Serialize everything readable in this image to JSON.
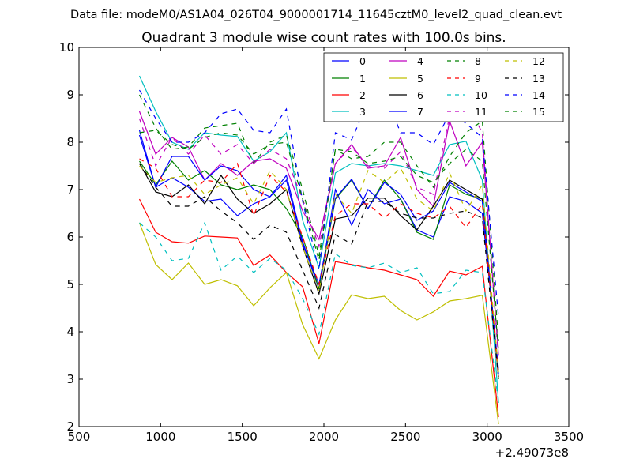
{
  "figure": {
    "suptitle": "Data file: modeM0/AS1A04_026T04_9000001714_11645cztM0_level2_quad_clean.evt"
  },
  "chart_data": {
    "type": "line",
    "title": "Quadrant 3 module wise count rates with 100.0s bins.",
    "xlabel": "",
    "ylabel": "",
    "x_offset_label": "+2.49073e8",
    "xlim": [
      500,
      3500
    ],
    "ylim": [
      2,
      10
    ],
    "xticks": [
      500,
      1000,
      1500,
      2000,
      2500,
      3000,
      3500
    ],
    "yticks": [
      2,
      3,
      4,
      5,
      6,
      7,
      8,
      9,
      10
    ],
    "legend_position": "upper-right",
    "legend_columns": 4,
    "x": [
      870,
      970,
      1070,
      1170,
      1270,
      1370,
      1470,
      1570,
      1670,
      1770,
      1870,
      1970,
      2070,
      2170,
      2270,
      2370,
      2470,
      2570,
      2670,
      2770,
      2870,
      2970,
      3070
    ],
    "series": [
      {
        "name": "0",
        "color": "#0000ff",
        "dash": "solid",
        "values": [
          8.15,
          7.05,
          7.25,
          7.05,
          6.75,
          6.8,
          6.45,
          6.7,
          6.85,
          7.3,
          5.9,
          4.9,
          7.0,
          6.25,
          7.0,
          6.7,
          6.8,
          6.15,
          6.0,
          6.85,
          6.75,
          6.5,
          3.2
        ]
      },
      {
        "name": "1",
        "color": "#008000",
        "dash": "solid",
        "values": [
          7.6,
          7.1,
          7.6,
          7.2,
          7.4,
          7.1,
          7.0,
          7.1,
          7.0,
          6.6,
          6.0,
          4.9,
          6.8,
          7.2,
          6.6,
          7.2,
          6.8,
          6.1,
          5.95,
          7.1,
          6.9,
          6.8,
          3.0
        ]
      },
      {
        "name": "2",
        "color": "#ff0000",
        "dash": "solid",
        "values": [
          6.8,
          6.1,
          5.9,
          5.87,
          6.02,
          6.0,
          5.98,
          5.4,
          5.62,
          5.25,
          4.95,
          3.75,
          5.48,
          5.42,
          5.35,
          5.3,
          5.2,
          5.1,
          4.75,
          5.28,
          5.2,
          5.38,
          2.2
        ]
      },
      {
        "name": "3",
        "color": "#00bfbf",
        "dash": "solid",
        "values": [
          9.4,
          8.65,
          8.0,
          7.85,
          8.2,
          8.15,
          8.12,
          7.6,
          7.8,
          8.2,
          6.35,
          5.35,
          7.35,
          7.55,
          7.5,
          7.55,
          7.5,
          7.4,
          7.3,
          7.95,
          8.02,
          7.2,
          2.5
        ]
      },
      {
        "name": "4",
        "color": "#bf00bf",
        "dash": "solid",
        "values": [
          8.65,
          7.75,
          8.1,
          7.9,
          7.2,
          7.55,
          7.3,
          7.6,
          7.65,
          7.45,
          6.55,
          5.95,
          7.55,
          7.95,
          7.45,
          7.5,
          8.1,
          7.0,
          6.65,
          8.45,
          7.5,
          8.0,
          3.5
        ]
      },
      {
        "name": "5",
        "color": "#bfbf00",
        "dash": "solid",
        "values": [
          6.3,
          5.42,
          5.1,
          5.45,
          5.0,
          5.1,
          4.97,
          4.55,
          4.93,
          5.25,
          4.15,
          3.43,
          4.25,
          4.78,
          4.7,
          4.75,
          4.45,
          4.25,
          4.42,
          4.65,
          4.7,
          4.77,
          2.05
        ]
      },
      {
        "name": "6",
        "color": "#000000",
        "dash": "solid",
        "values": [
          7.55,
          6.95,
          6.85,
          7.1,
          6.7,
          7.3,
          6.8,
          6.5,
          6.7,
          7.0,
          5.8,
          4.8,
          6.38,
          6.45,
          6.82,
          6.82,
          6.45,
          6.15,
          6.65,
          7.2,
          7.0,
          6.8,
          3.1
        ]
      },
      {
        "name": "7",
        "color": "#0000ff",
        "dash": "solid",
        "values": [
          8.25,
          7.05,
          7.7,
          7.7,
          7.2,
          7.5,
          7.4,
          7.0,
          6.85,
          7.2,
          5.85,
          5.0,
          6.82,
          7.22,
          6.6,
          7.15,
          6.9,
          6.35,
          6.55,
          7.15,
          6.95,
          6.75,
          3.1
        ]
      },
      {
        "name": "8",
        "color": "#008000",
        "dash": "dashed",
        "values": [
          9.0,
          8.3,
          7.85,
          7.9,
          8.3,
          8.35,
          8.4,
          7.55,
          8.0,
          8.15,
          7.0,
          5.6,
          7.85,
          7.65,
          7.7,
          8.0,
          8.0,
          7.5,
          7.05,
          7.7,
          8.2,
          8.45,
          3.8
        ]
      },
      {
        "name": "9",
        "color": "#ff0000",
        "dash": "dashed",
        "values": [
          7.65,
          7.45,
          6.85,
          6.85,
          7.2,
          7.15,
          7.55,
          6.45,
          7.3,
          6.95,
          6.0,
          5.0,
          6.45,
          6.7,
          6.7,
          6.4,
          6.7,
          6.5,
          6.4,
          6.65,
          6.2,
          6.7,
          3.05
        ]
      },
      {
        "name": "10",
        "color": "#00bfbf",
        "dash": "dashed",
        "values": [
          6.3,
          6.0,
          5.5,
          5.55,
          6.3,
          5.3,
          5.6,
          5.25,
          5.55,
          5.3,
          4.7,
          3.95,
          5.65,
          5.4,
          5.35,
          5.45,
          5.25,
          5.35,
          4.8,
          4.85,
          5.3,
          5.25,
          2.5
        ]
      },
      {
        "name": "11",
        "color": "#bf00bf",
        "dash": "dashed",
        "values": [
          8.5,
          7.5,
          8.1,
          7.75,
          8.15,
          7.75,
          7.95,
          7.55,
          7.85,
          7.65,
          6.8,
          5.8,
          7.55,
          7.9,
          7.5,
          7.45,
          7.8,
          7.05,
          6.9,
          8.55,
          8.85,
          8.2,
          3.4
        ]
      },
      {
        "name": "12",
        "color": "#bfbf00",
        "dash": "dashed",
        "values": [
          7.5,
          7.15,
          7.25,
          7.3,
          6.9,
          7.1,
          7.25,
          6.7,
          7.4,
          7.0,
          5.8,
          4.85,
          6.9,
          6.5,
          7.4,
          7.15,
          7.45,
          6.8,
          6.55,
          7.35,
          6.55,
          7.1,
          3.15
        ]
      },
      {
        "name": "13",
        "color": "#000000",
        "dash": "dashed",
        "values": [
          7.55,
          7.05,
          6.65,
          6.65,
          6.85,
          6.55,
          6.3,
          5.95,
          6.25,
          6.1,
          5.3,
          4.5,
          6.05,
          5.85,
          6.75,
          6.75,
          6.5,
          6.4,
          6.4,
          6.5,
          6.55,
          6.4,
          3.0
        ]
      },
      {
        "name": "14",
        "color": "#0000ff",
        "dash": "dashed",
        "values": [
          9.1,
          8.5,
          8.0,
          8.0,
          8.2,
          8.6,
          8.7,
          8.25,
          8.2,
          8.7,
          6.75,
          5.3,
          8.2,
          8.05,
          8.85,
          9.05,
          8.2,
          8.2,
          7.95,
          8.6,
          8.4,
          8.1,
          4.3
        ]
      },
      {
        "name": "15",
        "color": "#008000",
        "dash": "dashed",
        "values": [
          8.2,
          8.25,
          7.95,
          7.85,
          8.1,
          8.2,
          8.15,
          7.75,
          7.95,
          8.0,
          6.8,
          5.5,
          7.85,
          7.8,
          7.55,
          7.6,
          7.7,
          7.3,
          7.15,
          7.55,
          7.85,
          7.6,
          3.6
        ]
      }
    ]
  }
}
